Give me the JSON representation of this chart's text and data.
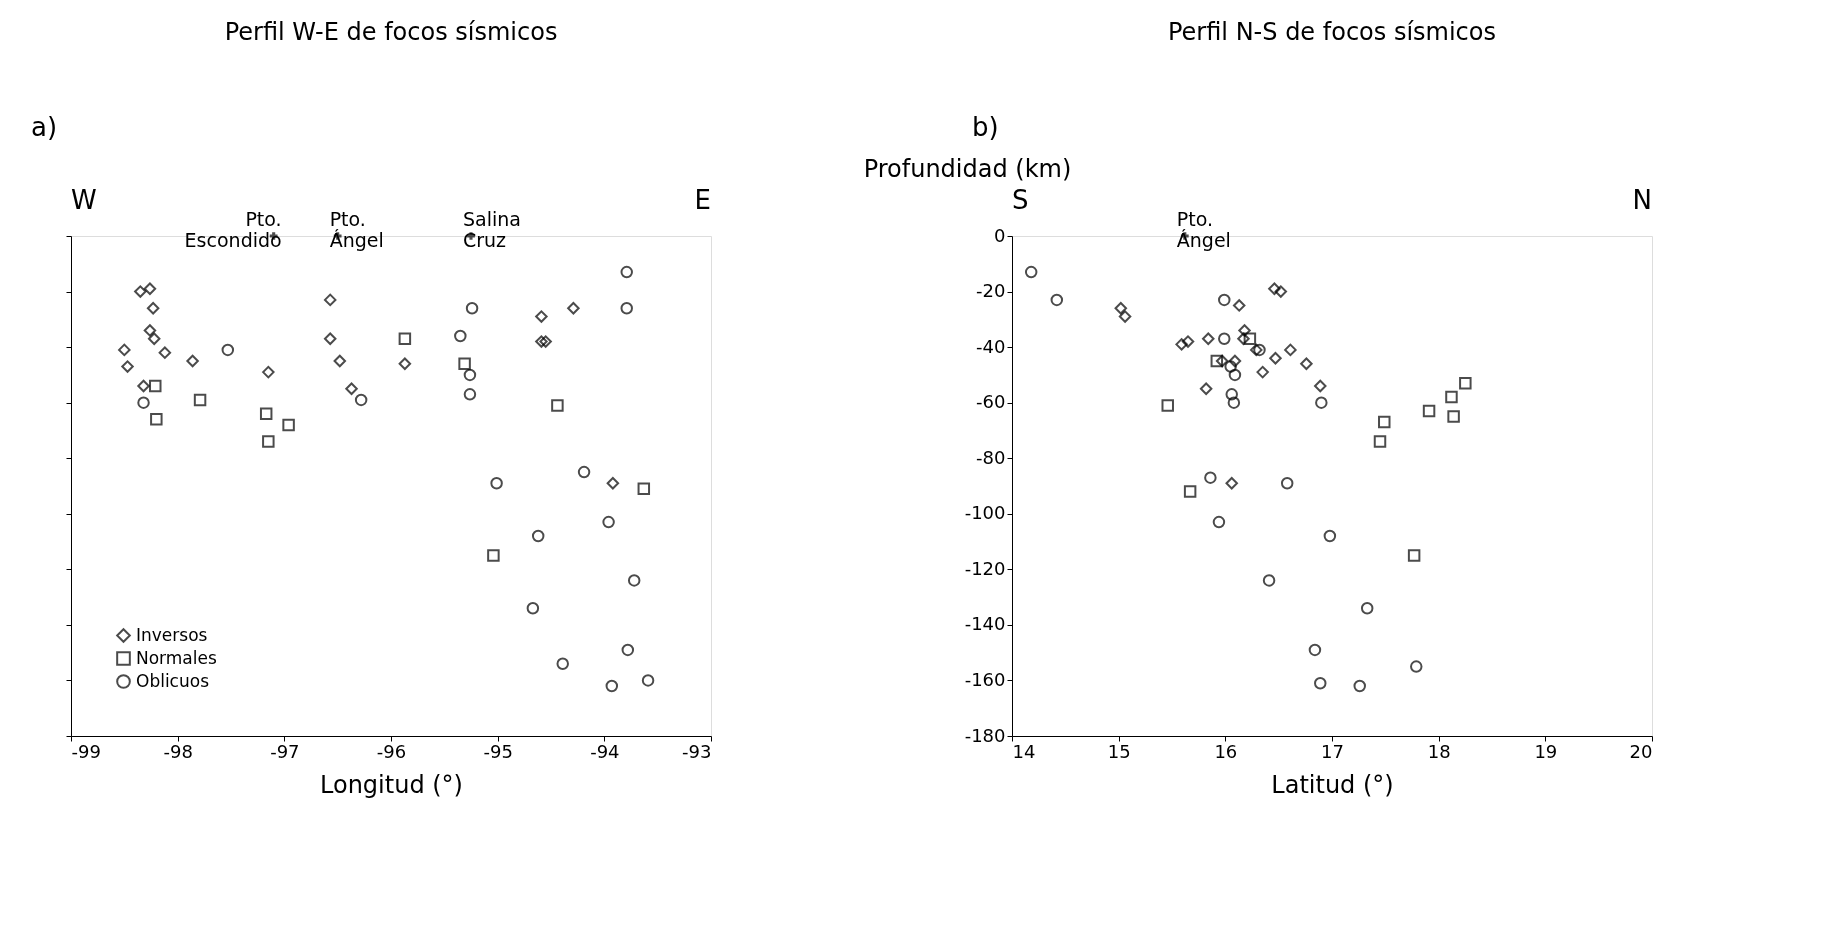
{
  "chart_data": [
    {
      "type": "scatter",
      "title": "Perfil W-E de focos sísmicos",
      "xlabel": "Longitud (°)",
      "xlim": [
        -99,
        -93
      ],
      "xticks": [
        -99,
        -98,
        -97,
        -96,
        -95,
        -94,
        -93
      ],
      "ylim": [
        -180,
        0
      ],
      "yticks": [
        0,
        -20,
        -40,
        -60,
        -80,
        -100,
        -120,
        -140,
        -160,
        -180
      ],
      "tick_labels": "x",
      "legend": "bottom left",
      "annotations": [
        "a)",
        "W",
        "E",
        {
          "text": "Pto. Escondido",
          "x": -97.1,
          "y": 0
        },
        {
          "text": "Pto. Ángel",
          "x": -96.5,
          "y": 0
        },
        {
          "text": "Salina Cruz",
          "x": -95.25,
          "y": 0
        }
      ],
      "series": [
        {
          "name": "Inversos",
          "color": "#000000",
          "marker": "diamond",
          "x": [
            -98.35,
            -98.26,
            -98.23,
            -98.26,
            -98.22,
            -98.5,
            -98.47,
            -98.12,
            -97.86,
            -98.32,
            -97.15,
            -96.57,
            -96.57,
            -96.48,
            -96.37,
            -95.87,
            -94.59,
            -94.29,
            -94.59,
            -94.55,
            -93.92
          ],
          "values": [
            -20,
            -19,
            -26,
            -34,
            -37,
            -41,
            -47,
            -42,
            -45,
            -54,
            -49,
            -23,
            -37,
            -45,
            -55,
            -46,
            -29,
            -26,
            -38,
            -38,
            -89
          ]
        },
        {
          "name": "Normales",
          "color": "#000000",
          "marker": "square",
          "x": [
            -98.21,
            -98.2,
            -97.79,
            -97.17,
            -97.15,
            -96.96,
            -95.87,
            -95.31,
            -94.44,
            -95.04,
            -93.63
          ],
          "values": [
            -54,
            -66,
            -59,
            -64,
            -74,
            -68,
            -37,
            -46,
            -61,
            -115,
            -91
          ]
        },
        {
          "name": "Oblicuos",
          "color": "#000000",
          "marker": "circle",
          "x": [
            -98.32,
            -97.53,
            -96.28,
            -95.24,
            -95.35,
            -95.26,
            -95.26,
            -93.79,
            -93.79,
            -95.01,
            -94.19,
            -93.96,
            -94.62,
            -93.72,
            -94.67,
            -94.39,
            -93.78,
            -93.93,
            -93.59
          ],
          "values": [
            -60,
            -41,
            -59,
            -26,
            -36,
            -50,
            -57,
            -13,
            -26,
            -89,
            -85,
            -103,
            -108,
            -124,
            -134,
            -154,
            -149,
            -162,
            -160
          ]
        }
      ]
    },
    {
      "type": "scatter",
      "title": "Perfil N-S de focos sísmicos",
      "xlabel": "Latitud (°)",
      "ylabel": "Profundidad (km)",
      "xlim": [
        14,
        20
      ],
      "xticks": [
        14,
        15,
        16,
        17,
        18,
        19,
        20
      ],
      "ylim": [
        -180,
        0
      ],
      "yticks": [
        0,
        -20,
        -40,
        -60,
        -80,
        -100,
        -120,
        -140,
        -160,
        -180
      ],
      "legend": "bottom left",
      "annotations": [
        "b)",
        "S",
        "N",
        {
          "text": "Pto. Ángel",
          "x": 15.62,
          "y": 0
        }
      ],
      "series": [
        {
          "name": "Inversos",
          "color": "#000000",
          "marker": "diamond",
          "x": [
            15.02,
            15.06,
            15.59,
            15.65,
            15.84,
            16.13,
            16.18,
            16.17,
            16.46,
            16.52,
            16.61,
            16.47,
            16.35,
            16.76,
            16.89,
            16.09,
            15.97,
            16.29,
            15.82,
            16.06
          ],
          "values": [
            -26,
            -29,
            -39,
            -38,
            -37,
            -25,
            -34,
            -37,
            -19,
            -20,
            -41,
            -44,
            -49,
            -46,
            -54,
            -45,
            -45,
            -41,
            -55,
            -89
          ]
        },
        {
          "name": "Normales",
          "color": "#000000",
          "marker": "square",
          "x": [
            15.92,
            16.23,
            15.46,
            15.67,
            18.25,
            18.12,
            18.14,
            17.91,
            17.49,
            17.45,
            17.77
          ],
          "values": [
            -45,
            -37,
            -61,
            -92,
            -53,
            -58,
            -65,
            -63,
            -67,
            -74,
            -115
          ]
        },
        {
          "name": "Oblicuos",
          "color": "#000000",
          "marker": "circle",
          "x": [
            14.18,
            14.42,
            15.99,
            15.99,
            16.32,
            16.09,
            16.06,
            16.08,
            16.9,
            16.05,
            15.86,
            16.58,
            15.94,
            16.98,
            16.41,
            16.84,
            16.89,
            17.26,
            17.33,
            17.79
          ],
          "values": [
            -13,
            -23,
            -23,
            -37,
            -41,
            -50,
            -57,
            -60,
            -60,
            -47,
            -87,
            -89,
            -103,
            -108,
            -124,
            -149,
            -161,
            -162,
            -134,
            -155
          ]
        }
      ]
    }
  ]
}
